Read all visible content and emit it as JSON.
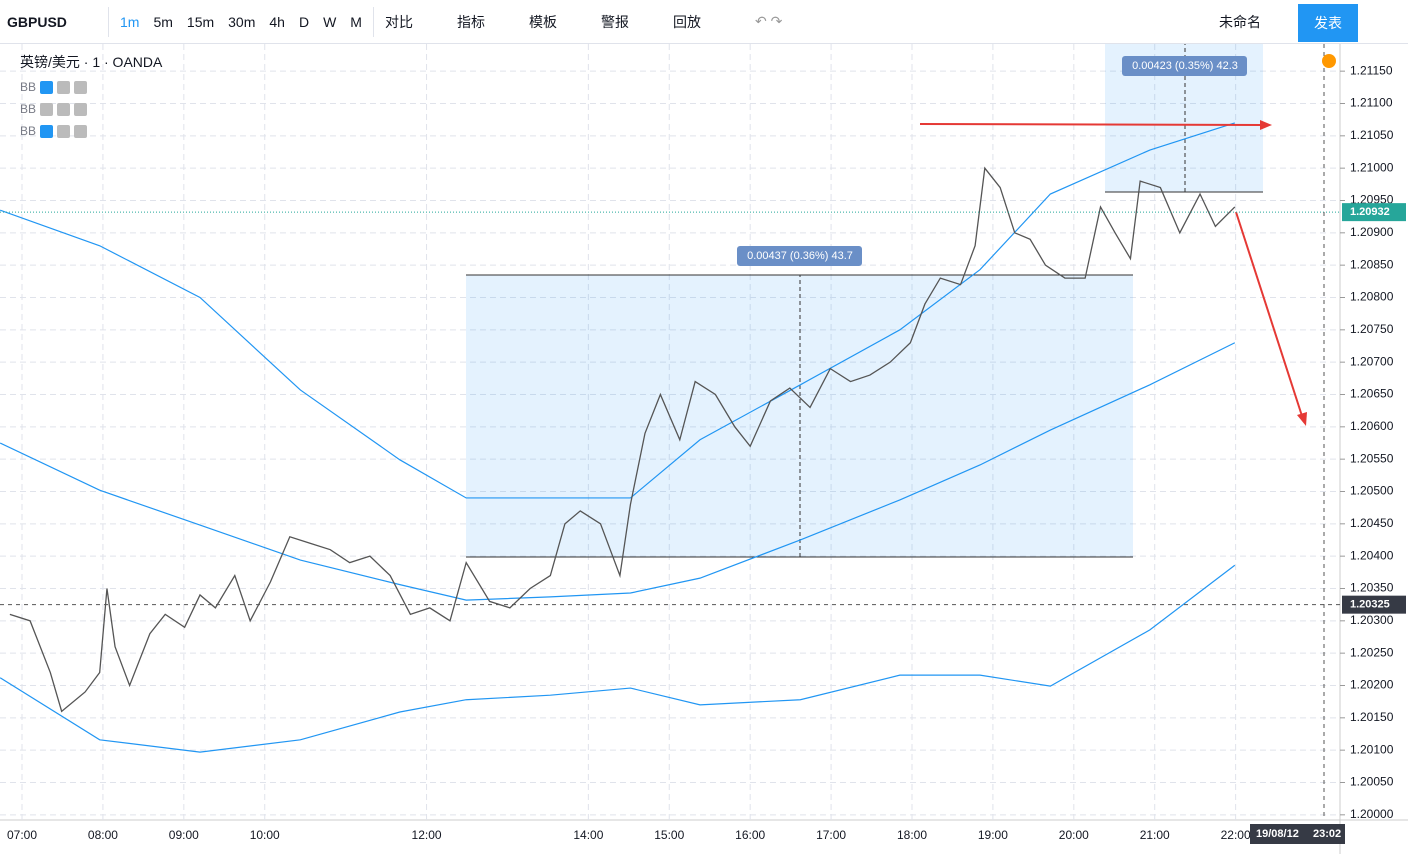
{
  "toolbar": {
    "symbol": "GBPUSD",
    "intervals": [
      "1m",
      "5m",
      "15m",
      "30m",
      "4h",
      "D",
      "W",
      "M"
    ],
    "tools": [
      "对比",
      "指标",
      "模板",
      "警报",
      "回放"
    ],
    "layout_name": "未命名",
    "publish": "发表"
  },
  "legend": {
    "title": "英镑/美元 · 1 · OANDA",
    "indicators": [
      "BB",
      "BB",
      "BB"
    ]
  },
  "measures": [
    "0.00437 (0.36%) 43.7",
    "0.00423 (0.35%) 42.3"
  ],
  "last_price": {
    "value": 1.20932,
    "label": "1.20932"
  },
  "cursor_price": {
    "value": 1.20325,
    "label": "1.20325"
  },
  "cursor_date": "19/08/12",
  "cursor_time": "23:02",
  "chart_data": {
    "type": "line",
    "symbol": "GBPUSD",
    "xlim": [
      6.728,
      23.29
    ],
    "ylim": [
      1.19992,
      1.21192
    ],
    "xticks": [
      {
        "value": 7,
        "label": "07:00"
      },
      {
        "value": 8,
        "label": "08:00"
      },
      {
        "value": 9,
        "label": "09:00"
      },
      {
        "value": 10,
        "label": "10:00"
      },
      {
        "value": 12,
        "label": "12:00"
      },
      {
        "value": 14,
        "label": "14:00"
      },
      {
        "value": 15,
        "label": "15:00"
      },
      {
        "value": 16,
        "label": "16:00"
      },
      {
        "value": 17,
        "label": "17:00"
      },
      {
        "value": 18,
        "label": "18:00"
      },
      {
        "value": 19,
        "label": "19:00"
      },
      {
        "value": 20,
        "label": "20:00"
      },
      {
        "value": 21,
        "label": "21:00"
      },
      {
        "value": 22,
        "label": "22:00"
      }
    ],
    "yticks": [
      {
        "value": 1.2,
        "label": "1.20000"
      },
      {
        "value": 1.2005,
        "label": "1.20050"
      },
      {
        "value": 1.201,
        "label": "1.20100"
      },
      {
        "value": 1.2015,
        "label": "1.20150"
      },
      {
        "value": 1.202,
        "label": "1.20200"
      },
      {
        "value": 1.2025,
        "label": "1.20250"
      },
      {
        "value": 1.203,
        "label": "1.20300"
      },
      {
        "value": 1.2035,
        "label": "1.20350"
      },
      {
        "value": 1.204,
        "label": "1.20400"
      },
      {
        "value": 1.2045,
        "label": "1.20450"
      },
      {
        "value": 1.205,
        "label": "1.20500"
      },
      {
        "value": 1.2055,
        "label": "1.20550"
      },
      {
        "value": 1.206,
        "label": "1.20600"
      },
      {
        "value": 1.2065,
        "label": "1.20650"
      },
      {
        "value": 1.207,
        "label": "1.20700"
      },
      {
        "value": 1.2075,
        "label": "1.20750"
      },
      {
        "value": 1.208,
        "label": "1.20800"
      },
      {
        "value": 1.2085,
        "label": "1.20850"
      },
      {
        "value": 1.209,
        "label": "1.20900"
      },
      {
        "value": 1.2095,
        "label": "1.20950"
      },
      {
        "value": 1.21,
        "label": "1.21000"
      },
      {
        "value": 1.2105,
        "label": "1.21050"
      },
      {
        "value": 1.211,
        "label": "1.21100"
      },
      {
        "value": 1.2115,
        "label": "1.21150"
      }
    ],
    "grid": true,
    "price": {
      "color": "#555555",
      "x": [
        6.85,
        7.1,
        7.35,
        7.49,
        7.78,
        7.96,
        8.05,
        8.15,
        8.33,
        8.58,
        8.77,
        9.01,
        9.2,
        9.39,
        9.63,
        9.82,
        10.07,
        10.31,
        10.56,
        10.81,
        11.05,
        11.3,
        11.55,
        11.8,
        12.04,
        12.29,
        12.49,
        12.78,
        13.03,
        13.28,
        13.53,
        13.71,
        13.9,
        14.15,
        14.39,
        14.52,
        14.7,
        14.89,
        15.13,
        15.32,
        15.57,
        15.81,
        16.0,
        16.25,
        16.49,
        16.74,
        16.99,
        17.24,
        17.48,
        17.73,
        17.98,
        18.16,
        18.35,
        18.6,
        18.78,
        18.9,
        19.09,
        19.27,
        19.46,
        19.65,
        19.89,
        20.14,
        20.33,
        20.51,
        20.7,
        20.82,
        21.07,
        21.31,
        21.56,
        21.75,
        21.99
      ],
      "values": [
        1.2031,
        1.203,
        1.2022,
        1.2016,
        1.2019,
        1.2022,
        1.2035,
        1.2026,
        1.202,
        1.2028,
        1.2031,
        1.2029,
        1.2034,
        1.2032,
        1.2037,
        1.203,
        1.2036,
        1.2043,
        1.2042,
        1.2041,
        1.2039,
        1.204,
        1.2037,
        1.2031,
        1.2032,
        1.203,
        1.2039,
        1.2033,
        1.2032,
        1.2035,
        1.2037,
        1.2045,
        1.2047,
        1.2045,
        1.2037,
        1.2048,
        1.2059,
        1.2065,
        1.2058,
        1.2067,
        1.2065,
        1.206,
        1.2057,
        1.2064,
        1.2066,
        1.2063,
        1.2069,
        1.2067,
        1.2068,
        1.207,
        1.2073,
        1.2079,
        1.2083,
        1.2082,
        1.2088,
        1.21,
        1.2097,
        1.209,
        1.2089,
        1.2085,
        1.2083,
        1.2083,
        1.2094,
        1.209,
        1.2086,
        1.2098,
        1.2097,
        1.209,
        1.2096,
        1.2091,
        1.2094
      ]
    },
    "bands_x": [
      6.73,
      7.96,
      9.2,
      10.44,
      11.67,
      12.49,
      13.53,
      14.52,
      15.38,
      16.62,
      17.85,
      18.84,
      19.71,
      20.94,
      21.99
    ],
    "series": [
      {
        "color": "#2196f3",
        "values": [
          1.20935,
          1.2088,
          1.208,
          1.20657,
          1.20549,
          1.2049,
          1.2049,
          1.2049,
          1.2058,
          1.20665,
          1.2075,
          1.20843,
          1.2096,
          1.21028,
          1.2107
        ]
      },
      {
        "color": "#2196f3",
        "values": [
          1.20575,
          1.20502,
          1.20448,
          1.20394,
          1.20356,
          1.20332,
          1.20337,
          1.20343,
          1.20366,
          1.20425,
          1.20487,
          1.20541,
          1.20595,
          1.20665,
          1.2073
        ]
      },
      {
        "color": "#2196f3",
        "values": [
          1.20212,
          1.20116,
          1.20097,
          1.20116,
          1.20159,
          1.20178,
          1.20185,
          1.20196,
          1.2017,
          1.20178,
          1.20216,
          1.20216,
          1.20199,
          1.20286,
          1.20386
        ]
      }
    ]
  }
}
